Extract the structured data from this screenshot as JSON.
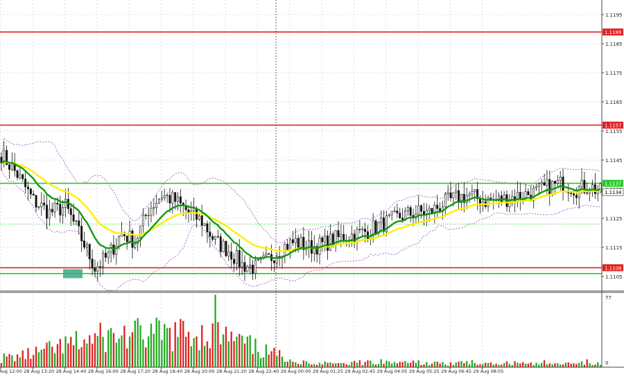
{
  "chart_data": [
    {
      "type": "candlestick",
      "panel": "price",
      "grid": true,
      "ylim": [
        1.11,
        1.12
      ],
      "y_ticks": [
        1.1105,
        1.1115,
        1.1125,
        1.1135,
        1.1145,
        1.1155,
        1.1165,
        1.1175,
        1.1185,
        1.1195
      ],
      "y_tick_labels": [
        "1.1105",
        "1.1115",
        "1.1125",
        "1.1135",
        "1.1145",
        "1.1155",
        "1.1165",
        "1.1175",
        "1.1185",
        "1.1195"
      ],
      "current_price_label": "1.1134",
      "current_price": 1.1134,
      "levels": [
        {
          "label": "1.1189",
          "value": 1.1189,
          "color": "#e02020"
        },
        {
          "label": "1.1157",
          "value": 1.1157,
          "color": "#e02020"
        },
        {
          "label": "1.1137",
          "value": 1.1137,
          "color": "#22cc22"
        },
        {
          "label": "1.1108",
          "value": 1.1108,
          "color": "#e02020"
        },
        {
          "label": "",
          "value": 1.1106,
          "color": "#22cc22"
        }
      ],
      "dotted_level": 1.1123,
      "x_tick_labels": [
        "28 Aug 12:00",
        "28 Aug 13:20",
        "28 Aug 14:40",
        "28 Aug 16:00",
        "28 Aug 17:20",
        "28 Aug 18:40",
        "28 Aug 20:00",
        "28 Aug 21:20",
        "28 Aug 22:40",
        "29 Aug 00:00",
        "29 Aug 01:25",
        "29 Aug 02:45",
        "29 Aug 04:05",
        "29 Aug 05:25",
        "29 Aug 06:45",
        "29 Aug 08:05"
      ],
      "anchor_prices": [
        [
          0,
          1.1147
        ],
        [
          6,
          1.114
        ],
        [
          12,
          1.1131
        ],
        [
          18,
          1.1127
        ],
        [
          24,
          1.1129
        ],
        [
          30,
          1.1118
        ],
        [
          35,
          1.1108
        ],
        [
          40,
          1.1112
        ],
        [
          45,
          1.112
        ],
        [
          50,
          1.1117
        ],
        [
          55,
          1.1128
        ],
        [
          60,
          1.1133
        ],
        [
          65,
          1.1131
        ],
        [
          70,
          1.1127
        ],
        [
          75,
          1.1124
        ],
        [
          80,
          1.1117
        ],
        [
          85,
          1.1114
        ],
        [
          90,
          1.1109
        ],
        [
          95,
          1.1108
        ],
        [
          100,
          1.1111
        ],
        [
          105,
          1.1115
        ],
        [
          110,
          1.1117
        ],
        [
          115,
          1.1115
        ],
        [
          120,
          1.1116
        ],
        [
          125,
          1.1118
        ],
        [
          130,
          1.1119
        ],
        [
          135,
          1.112
        ],
        [
          140,
          1.1122
        ],
        [
          145,
          1.1124
        ],
        [
          150,
          1.1126
        ],
        [
          155,
          1.1127
        ],
        [
          160,
          1.1127
        ],
        [
          165,
          1.113
        ],
        [
          170,
          1.1132
        ],
        [
          175,
          1.1133
        ],
        [
          180,
          1.1131
        ],
        [
          185,
          1.1131
        ],
        [
          190,
          1.1132
        ],
        [
          195,
          1.1133
        ],
        [
          200,
          1.1134
        ],
        [
          205,
          1.1136
        ],
        [
          210,
          1.1137
        ],
        [
          215,
          1.1135
        ],
        [
          220,
          1.1136
        ],
        [
          224,
          1.1134
        ]
      ],
      "series": [
        {
          "kind": "moving_average",
          "color": "#119911"
        },
        {
          "kind": "moving_average",
          "color": "#ffee00"
        },
        {
          "kind": "envelope",
          "color": "#aa66cc"
        }
      ],
      "highlight_box_color": "#3aa88a"
    },
    {
      "type": "bar",
      "panel": "volume",
      "y_tick_labels": [
        "77",
        "0"
      ],
      "ylim": [
        0,
        77
      ],
      "up_color": "#22aa22",
      "down_color": "#dd2222"
    }
  ]
}
